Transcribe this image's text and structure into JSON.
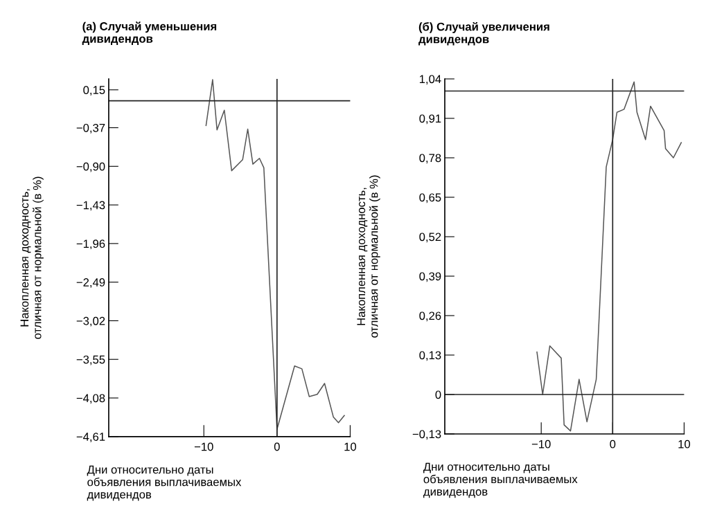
{
  "chart_data": [
    {
      "type": "line",
      "title": "(а) Случай уменьшения\nдивидендов",
      "xlabel": "Дни относительно даты\nобъявления выплачиваемых\nдивидендов",
      "ylabel": "Накопленная доходность,\nотличная от нормальной (в %)",
      "xlim": [
        -23,
        10
      ],
      "ylim": [
        -4.61,
        0.3
      ],
      "xticks": [
        {
          "value": -10,
          "label": "−10"
        },
        0,
        10
      ],
      "yticks": [
        {
          "value": 0.15,
          "label": "0,15"
        },
        {
          "value": -0.37,
          "label": "−0,37"
        },
        {
          "value": -0.9,
          "label": "−0,90"
        },
        {
          "value": -1.43,
          "label": "−1,43"
        },
        {
          "value": -1.96,
          "label": "−1,96"
        },
        {
          "value": -2.49,
          "label": "−2,49"
        },
        {
          "value": -3.02,
          "label": "−3,02"
        },
        {
          "value": -3.55,
          "label": "−3,55"
        },
        {
          "value": -4.08,
          "label": "−4,08"
        },
        {
          "value": -4.61,
          "label": "−4,61"
        }
      ],
      "series": [
        {
          "color": "#555555",
          "x": [
            -9.7,
            -8.8,
            -8.2,
            -7.2,
            -6.2,
            -4.7,
            -4.0,
            -3.3,
            -2.4,
            -1.8,
            0,
            2.4,
            3.4,
            4.4,
            5.5,
            6.5,
            7.7,
            8.4,
            9.2
          ],
          "values": [
            -0.34,
            0.29,
            -0.4,
            -0.13,
            -0.96,
            -0.81,
            -0.39,
            -0.87,
            -0.79,
            -0.92,
            -4.51,
            -3.64,
            -3.68,
            -4.06,
            -4.03,
            -3.88,
            -4.34,
            -4.42,
            -4.32
          ]
        }
      ],
      "ref_lines": [
        {
          "axis": "y",
          "value": 0,
          "color": "#222222"
        },
        {
          "axis": "x",
          "value": 0,
          "color": "#222222"
        }
      ],
      "grid": false,
      "marker": "none",
      "line_style": "solid"
    },
    {
      "type": "line",
      "title": "(б) Случай увеличения\nдивидендов",
      "xlabel": "Дни относительно даты\nобъявления выплачиваемых\nдивидендов",
      "ylabel": "Накопленная доходность,\nотличная от нормальной (в %)",
      "xlim": [
        -23.5,
        10
      ],
      "ylim": [
        -0.13,
        1.04
      ],
      "xticks": [
        {
          "value": -10,
          "label": "−10"
        },
        0,
        10
      ],
      "yticks": [
        {
          "value": 1.04,
          "label": "1,04"
        },
        {
          "value": 0.91,
          "label": "0,91"
        },
        {
          "value": 0.78,
          "label": "0,78"
        },
        {
          "value": 0.65,
          "label": "0,65"
        },
        {
          "value": 0.52,
          "label": "0,52"
        },
        {
          "value": 0.39,
          "label": "0,39"
        },
        {
          "value": 0.26,
          "label": "0,26"
        },
        {
          "value": 0.13,
          "label": "0,13"
        },
        0,
        {
          "value": -0.13,
          "label": "−0,13"
        }
      ],
      "series": [
        {
          "color": "#555555",
          "x": [
            -10.6,
            -9.8,
            -8.8,
            -7.2,
            -6.8,
            -5.9,
            -4.7,
            -3.6,
            -2.3,
            -0.9,
            0,
            0.6,
            1.6,
            3.0,
            3.4,
            4.6,
            5.3,
            7.2,
            7.4,
            8.5,
            9.6
          ],
          "values": [
            0.14,
            0.0,
            0.16,
            0.12,
            -0.1,
            -0.12,
            0.05,
            -0.09,
            0.05,
            0.75,
            0.84,
            0.93,
            0.94,
            1.03,
            0.93,
            0.84,
            0.95,
            0.87,
            0.81,
            0.78,
            0.83
          ]
        }
      ],
      "ref_lines": [
        {
          "axis": "y",
          "value": 1.0,
          "color": "#222222"
        },
        {
          "axis": "y",
          "value": 0,
          "color": "#222222"
        },
        {
          "axis": "x",
          "value": 0,
          "color": "#222222"
        }
      ],
      "grid": false,
      "marker": "none",
      "line_style": "solid"
    }
  ]
}
